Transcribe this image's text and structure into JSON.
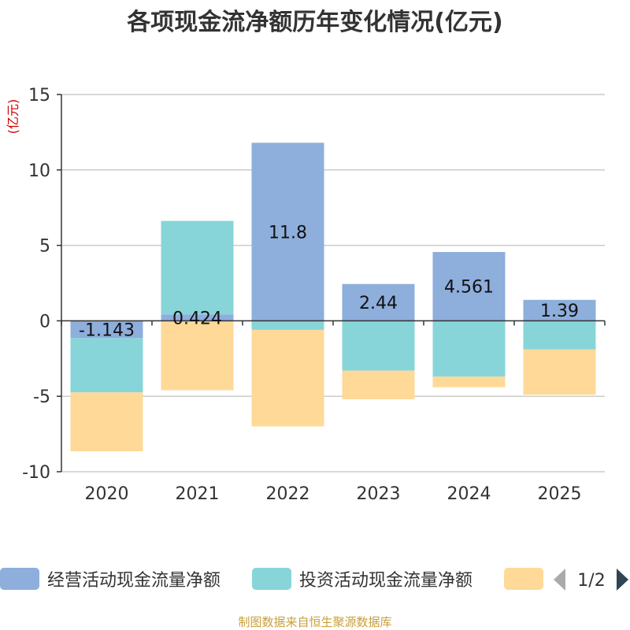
{
  "chart_data": {
    "type": "bar",
    "stacked": true,
    "title": "各项现金流净额历年变化情况(亿元)",
    "ylabel": "(亿元)",
    "ylim": [
      -10,
      15
    ],
    "yticks": [
      15,
      10,
      5,
      0,
      -5,
      -10
    ],
    "categories": [
      "2020",
      "2021",
      "2022",
      "2023",
      "2024",
      "2025"
    ],
    "series": [
      {
        "name": "经营活动现金流量净额",
        "color": "#8eaedc",
        "values": [
          -1.143,
          0.424,
          11.8,
          2.44,
          4.561,
          1.39
        ],
        "labels": [
          "-1.143",
          "0.424",
          "11.8",
          "2.44",
          "4.561",
          "1.39"
        ]
      },
      {
        "name": "投资活动现金流量净额",
        "color": "#87d5d8",
        "values": [
          -3.6,
          6.2,
          -0.6,
          -3.3,
          -3.7,
          -1.9
        ]
      },
      {
        "name": "",
        "color": "#ffd998",
        "values": [
          -3.9,
          -4.6,
          -6.4,
          -1.9,
          -0.7,
          -3.0
        ]
      }
    ],
    "grid": true,
    "legend": "bottom",
    "legend_page": "1/2",
    "source": "制图数据来自恒生聚源数据库"
  }
}
